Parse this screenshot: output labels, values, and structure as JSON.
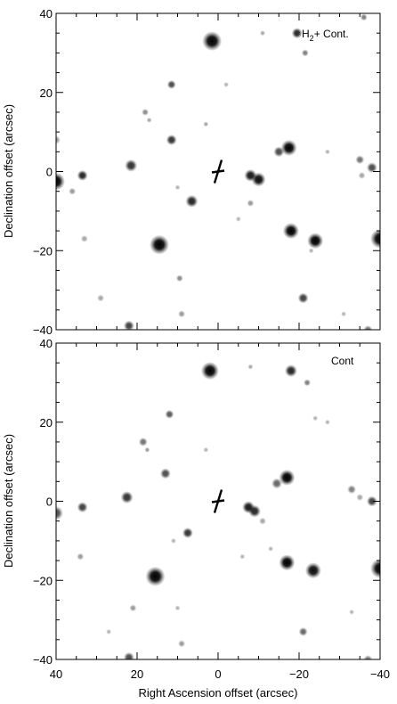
{
  "figure": {
    "xlabel": "Right Ascension offset (arcsec)",
    "ylabel": "Declination offset (arcsec)",
    "x_range": [
      40,
      -40
    ],
    "y_range": [
      -40,
      40
    ],
    "x_ticks": [
      40,
      20,
      0,
      -20,
      -40
    ],
    "y_ticks": [
      40,
      20,
      0,
      -20,
      -40
    ],
    "tick_labels_x": [
      "40",
      "20",
      "0",
      "−20",
      "−40"
    ],
    "tick_labels_y": [
      "40",
      "20",
      "0",
      "−20",
      "−40"
    ],
    "marker": {
      "icon": "cross-marker-icon",
      "x": 0,
      "y": 0
    },
    "panels": [
      {
        "label_main": "H",
        "label_sub": "2",
        "label_rest": "+ Cont.",
        "stars": [
          [
            1.5,
            33,
            11,
            1.0
          ],
          [
            -19.5,
            35,
            6,
            0.85
          ],
          [
            -21.5,
            30,
            4,
            0.5
          ],
          [
            -36,
            39,
            4,
            0.5
          ],
          [
            -11,
            35,
            3,
            0.35
          ],
          [
            -2,
            22,
            3,
            0.3
          ],
          [
            11.5,
            22,
            5,
            0.7
          ],
          [
            18,
            15,
            4,
            0.45
          ],
          [
            17,
            13,
            3,
            0.35
          ],
          [
            3,
            12,
            3,
            0.35
          ],
          [
            11.5,
            8,
            6,
            0.8
          ],
          [
            40,
            8,
            5,
            0.4
          ],
          [
            -17.5,
            6,
            9,
            1.0
          ],
          [
            -15,
            5,
            6,
            0.7
          ],
          [
            -27,
            5,
            3,
            0.3
          ],
          [
            -35,
            3,
            5,
            0.55
          ],
          [
            -38,
            1,
            6,
            0.7
          ],
          [
            -35.5,
            -1,
            4,
            0.35
          ],
          [
            21.5,
            1.5,
            7,
            0.8
          ],
          [
            33.5,
            -1,
            6,
            0.85
          ],
          [
            40,
            -2.5,
            10,
            1.0
          ],
          [
            -8,
            -1,
            7,
            0.9
          ],
          [
            -10,
            -2,
            8,
            0.95
          ],
          [
            36,
            -5,
            4,
            0.4
          ],
          [
            10,
            -4,
            3,
            0.3
          ],
          [
            6.5,
            -7.5,
            7,
            0.85
          ],
          [
            -8,
            -8,
            4,
            0.4
          ],
          [
            -5,
            -12,
            3,
            0.3
          ],
          [
            14.5,
            -18.5,
            11,
            1.0
          ],
          [
            -18,
            -15,
            9,
            1.0
          ],
          [
            -24,
            -17.5,
            9,
            1.0
          ],
          [
            -40,
            -17,
            11,
            1.0
          ],
          [
            33,
            -17,
            4,
            0.35
          ],
          [
            9.5,
            -27,
            4,
            0.45
          ],
          [
            -21,
            -32,
            6,
            0.75
          ],
          [
            29,
            -32,
            4,
            0.35
          ],
          [
            9,
            -36,
            4,
            0.4
          ],
          [
            22,
            -39,
            6,
            0.75
          ],
          [
            -31,
            -36,
            3,
            0.3
          ],
          [
            -37,
            -40,
            5,
            0.55
          ],
          [
            -23,
            -20,
            3,
            0.3
          ]
        ]
      },
      {
        "label_main": "Cont",
        "label_sub": "",
        "label_rest": "",
        "stars": [
          [
            2,
            33,
            10,
            1.0
          ],
          [
            -18,
            33,
            7,
            0.85
          ],
          [
            -22,
            30,
            4,
            0.5
          ],
          [
            -8,
            34,
            3,
            0.35
          ],
          [
            -24,
            21,
            3,
            0.3
          ],
          [
            -27,
            20,
            3,
            0.3
          ],
          [
            12,
            22,
            5,
            0.65
          ],
          [
            18.5,
            15,
            5,
            0.55
          ],
          [
            17.5,
            13,
            3,
            0.4
          ],
          [
            3,
            13,
            3,
            0.3
          ],
          [
            13,
            7,
            6,
            0.7
          ],
          [
            -17,
            6,
            9,
            1.0
          ],
          [
            -14.5,
            4.5,
            6,
            0.6
          ],
          [
            -33,
            3,
            5,
            0.5
          ],
          [
            -38,
            0,
            6,
            0.75
          ],
          [
            -35,
            1,
            4,
            0.35
          ],
          [
            22.5,
            1,
            7,
            0.8
          ],
          [
            33.5,
            -1.5,
            6,
            0.75
          ],
          [
            40,
            -3,
            8,
            0.7
          ],
          [
            -7.5,
            -1.5,
            7,
            0.9
          ],
          [
            -9,
            -2.5,
            7,
            0.85
          ],
          [
            7.5,
            -8,
            6,
            0.8
          ],
          [
            -11,
            -5,
            4,
            0.35
          ],
          [
            11,
            -10,
            3,
            0.3
          ],
          [
            34,
            -14,
            4,
            0.4
          ],
          [
            -6,
            -14,
            3,
            0.3
          ],
          [
            15.5,
            -19,
            11,
            1.0
          ],
          [
            -17,
            -15.5,
            9,
            1.0
          ],
          [
            -23.5,
            -17.5,
            9,
            0.95
          ],
          [
            -40,
            -17,
            11,
            1.0
          ],
          [
            -13,
            -12,
            3,
            0.3
          ],
          [
            21,
            -27,
            4,
            0.4
          ],
          [
            -21,
            -33,
            5,
            0.6
          ],
          [
            10,
            -27,
            3,
            0.3
          ],
          [
            9,
            -36,
            4,
            0.4
          ],
          [
            22,
            -39.5,
            6,
            0.7
          ],
          [
            -37,
            -40,
            5,
            0.5
          ],
          [
            -33,
            -28,
            3,
            0.3
          ],
          [
            27,
            -33,
            3,
            0.3
          ]
        ]
      }
    ]
  }
}
